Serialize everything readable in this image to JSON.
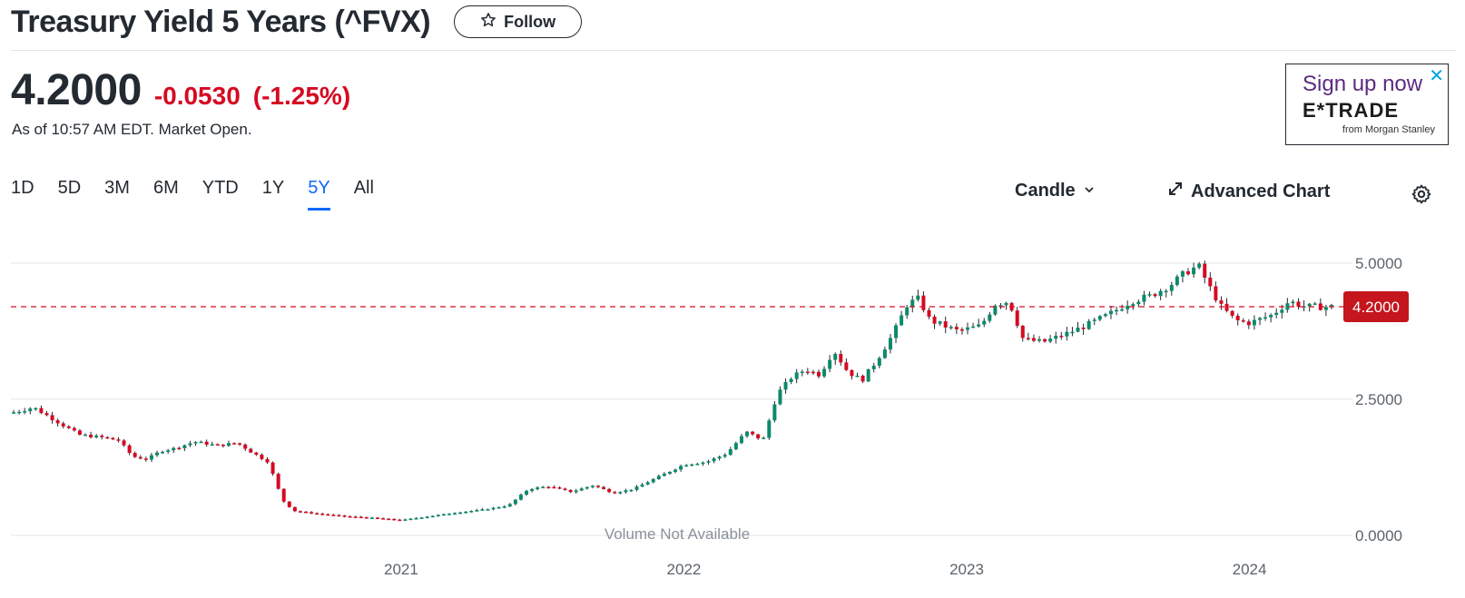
{
  "header": {
    "title": "Treasury Yield 5 Years (^FVX)",
    "follow_label": "Follow"
  },
  "quote": {
    "price": "4.2000",
    "change": "-0.0530",
    "change_pct": "(-1.25%)",
    "as_of": "As of 10:57 AM EDT. Market Open."
  },
  "ad": {
    "headline": "Sign up now",
    "brand": "E*TRADE",
    "sub": "from Morgan Stanley",
    "close": "✕"
  },
  "toolbar": {
    "ranges": [
      "1D",
      "5D",
      "3M",
      "6M",
      "YTD",
      "1Y",
      "5Y",
      "All"
    ],
    "active_range": "5Y",
    "chart_type": "Candle",
    "advanced": "Advanced Chart"
  },
  "colors": {
    "up": "#0b8a6b",
    "down": "#d60a22",
    "accent": "#0f69ff",
    "price_tag": "#c4161c"
  },
  "chart_data": {
    "type": "candlestick",
    "title": "",
    "ylim": [
      0,
      5.5
    ],
    "y_ticks": [
      5,
      2.5,
      0
    ],
    "y_tick_labels": [
      "5.0000",
      "2.5000",
      "0.0000"
    ],
    "x_range": [
      2019.62,
      2024.3
    ],
    "x_ticks": [
      2021,
      2022,
      2023,
      2024
    ],
    "x_tick_labels": [
      "2021",
      "2022",
      "2023",
      "2024"
    ],
    "current_value": 4.2,
    "current_label": "4.2000",
    "volume_note": "Volume Not Available",
    "series_close": [
      [
        2019.62,
        2.25
      ],
      [
        2019.7,
        2.35
      ],
      [
        2019.78,
        2.1
      ],
      [
        2019.86,
        1.85
      ],
      [
        2019.94,
        1.8
      ],
      [
        2020.0,
        1.75
      ],
      [
        2020.05,
        1.45
      ],
      [
        2020.1,
        1.4
      ],
      [
        2020.15,
        1.55
      ],
      [
        2020.2,
        1.6
      ],
      [
        2020.27,
        1.72
      ],
      [
        2020.35,
        1.65
      ],
      [
        2020.42,
        1.7
      ],
      [
        2020.48,
        1.5
      ],
      [
        2020.53,
        1.35
      ],
      [
        2020.58,
        0.65
      ],
      [
        2020.62,
        0.45
      ],
      [
        2020.7,
        0.4
      ],
      [
        2020.8,
        0.35
      ],
      [
        2020.9,
        0.32
      ],
      [
        2021.0,
        0.28
      ],
      [
        2021.1,
        0.35
      ],
      [
        2021.2,
        0.42
      ],
      [
        2021.3,
        0.48
      ],
      [
        2021.38,
        0.55
      ],
      [
        2021.45,
        0.85
      ],
      [
        2021.52,
        0.9
      ],
      [
        2021.6,
        0.8
      ],
      [
        2021.68,
        0.92
      ],
      [
        2021.75,
        0.78
      ],
      [
        2021.82,
        0.85
      ],
      [
        2021.9,
        1.05
      ],
      [
        2022.0,
        1.3
      ],
      [
        2022.08,
        1.35
      ],
      [
        2022.15,
        1.5
      ],
      [
        2022.22,
        1.9
      ],
      [
        2022.28,
        1.75
      ],
      [
        2022.33,
        2.6
      ],
      [
        2022.38,
        2.9
      ],
      [
        2022.43,
        3.05
      ],
      [
        2022.48,
        2.95
      ],
      [
        2022.53,
        3.4
      ],
      [
        2022.58,
        3.0
      ],
      [
        2022.63,
        2.85
      ],
      [
        2022.68,
        3.2
      ],
      [
        2022.74,
        3.7
      ],
      [
        2022.79,
        4.25
      ],
      [
        2022.83,
        4.35
      ],
      [
        2022.87,
        3.95
      ],
      [
        2022.92,
        3.85
      ],
      [
        2022.97,
        3.75
      ],
      [
        2023.05,
        3.85
      ],
      [
        2023.1,
        4.25
      ],
      [
        2023.15,
        4.3
      ],
      [
        2023.2,
        3.6
      ],
      [
        2023.27,
        3.55
      ],
      [
        2023.35,
        3.7
      ],
      [
        2023.42,
        3.85
      ],
      [
        2023.5,
        4.05
      ],
      [
        2023.58,
        4.3
      ],
      [
        2023.65,
        4.4
      ],
      [
        2023.72,
        4.6
      ],
      [
        2023.78,
        4.85
      ],
      [
        2023.82,
        4.95
      ],
      [
        2023.86,
        4.55
      ],
      [
        2023.9,
        4.2
      ],
      [
        2023.95,
        3.95
      ],
      [
        2024.0,
        3.9
      ],
      [
        2024.08,
        4.05
      ],
      [
        2024.14,
        4.3
      ],
      [
        2024.2,
        4.2
      ]
    ]
  }
}
